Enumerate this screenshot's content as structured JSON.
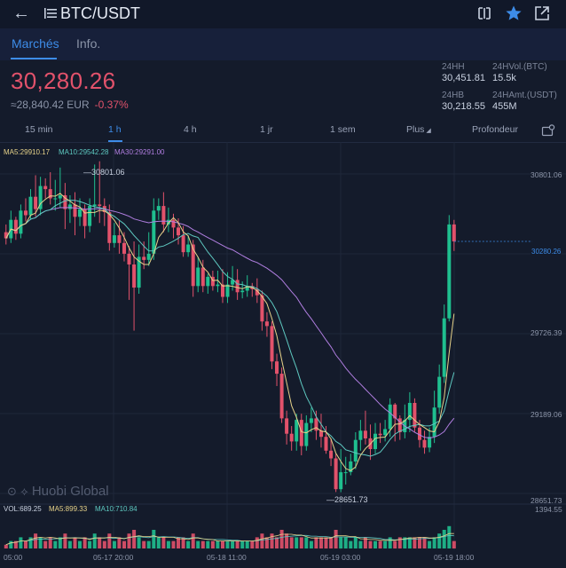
{
  "header": {
    "title": "BTC/USDT"
  },
  "tabs": [
    {
      "label": "Marchés"
    },
    {
      "label": "Info."
    }
  ],
  "ticker": {
    "price": "30,280.26",
    "eur_price": "≈28,840.42 EUR",
    "change": "-0.37%",
    "stats": [
      {
        "label": "24HH",
        "value": "30,451.81"
      },
      {
        "label": "24HVol.(BTC)",
        "value": "15.5k"
      },
      {
        "label": "24HB",
        "value": "30,218.55"
      },
      {
        "label": "24HAmt.(USDT)",
        "value": "455M"
      }
    ]
  },
  "intervals": [
    "15 min",
    "1 h",
    "4 h",
    "1 jr",
    "1 sem",
    "Plus",
    "Profondeur"
  ],
  "active_interval": "1 h",
  "ma_legend": {
    "ma5": "MA5:29910.17",
    "ma10": "MA10:29542.28",
    "ma30": "MA30:29291.00"
  },
  "volume_legend": {
    "vol": "VOL:689.25",
    "ma5": "MA5:899.33",
    "ma10": "MA10:710.84"
  },
  "watermark": "Huobi Global",
  "colors": {
    "up": "#1fbf8f",
    "down": "#e2526b",
    "accent": "#3d8ce8",
    "ma5": "#e7d38a",
    "ma10": "#5ec8c0",
    "ma30": "#b07ee0",
    "bg": "#141b2b"
  },
  "chart_data": {
    "type": "candlestick",
    "price_axis_labels": [
      "30801.06",
      "30280.26",
      "29726.39",
      "29189.06",
      "28651.73"
    ],
    "volume_axis_label": "1394.55",
    "time_labels": [
      "05:00",
      "05-17 20:00",
      "05-18 11:00",
      "05-19 03:00",
      "05-19 18:00"
    ],
    "high_marker": "30801.06",
    "low_marker": "28651.73",
    "last_price": "30280.26",
    "price_range": [
      28590,
      30880
    ],
    "candles": [
      [
        30340,
        30300,
        30390,
        30260,
        1
      ],
      [
        30300,
        30420,
        30480,
        30270,
        2
      ],
      [
        30420,
        30330,
        30440,
        30290,
        2
      ],
      [
        30330,
        30480,
        30520,
        30300,
        3
      ],
      [
        30480,
        30450,
        30560,
        30410,
        2
      ],
      [
        30450,
        30570,
        30620,
        30420,
        3
      ],
      [
        30570,
        30490,
        30710,
        30440,
        4
      ],
      [
        30490,
        30640,
        30700,
        30450,
        3
      ],
      [
        30640,
        30620,
        30690,
        30560,
        2
      ],
      [
        30620,
        30560,
        30730,
        30520,
        3
      ],
      [
        30560,
        30560,
        30680,
        30480,
        2
      ],
      [
        30560,
        30580,
        30760,
        30500,
        3
      ],
      [
        30580,
        30490,
        30660,
        30360,
        4
      ],
      [
        30490,
        30520,
        30580,
        30400,
        2
      ],
      [
        30520,
        30440,
        30600,
        30320,
        3
      ],
      [
        30440,
        30490,
        30560,
        30380,
        2
      ],
      [
        30490,
        30380,
        30520,
        30300,
        3
      ],
      [
        30380,
        30510,
        30560,
        30340,
        2
      ],
      [
        30510,
        30520,
        30780,
        30440,
        4
      ],
      [
        30520,
        30510,
        30801,
        30400,
        3
      ],
      [
        30510,
        30470,
        30560,
        30380,
        2
      ],
      [
        30470,
        30270,
        30520,
        30220,
        4
      ],
      [
        30270,
        30320,
        30400,
        30240,
        2
      ],
      [
        30320,
        30270,
        30420,
        30200,
        3
      ],
      [
        30270,
        30200,
        30340,
        30150,
        2
      ],
      [
        30200,
        30130,
        30250,
        29900,
        4
      ],
      [
        30130,
        29980,
        30280,
        29700,
        5
      ],
      [
        29980,
        30180,
        30260,
        29940,
        3
      ],
      [
        30180,
        30160,
        30280,
        30100,
        2
      ],
      [
        30160,
        30200,
        30340,
        30120,
        2
      ],
      [
        30200,
        30480,
        30560,
        30160,
        5
      ],
      [
        30480,
        30510,
        30560,
        30420,
        3
      ],
      [
        30510,
        30390,
        30600,
        30340,
        3
      ],
      [
        30390,
        30420,
        30500,
        30340,
        2
      ],
      [
        30420,
        30370,
        30460,
        30300,
        2
      ],
      [
        30370,
        30320,
        30430,
        30260,
        3
      ],
      [
        30320,
        30210,
        30380,
        30180,
        3
      ],
      [
        30210,
        30260,
        30320,
        30180,
        2
      ],
      [
        30260,
        29990,
        30290,
        29920,
        4
      ],
      [
        29990,
        30110,
        30180,
        29950,
        2
      ],
      [
        30110,
        29990,
        30160,
        29950,
        2
      ],
      [
        29990,
        30050,
        30070,
        29940,
        2
      ],
      [
        30050,
        29990,
        30090,
        29960,
        2
      ],
      [
        29990,
        30000,
        30090,
        29950,
        2
      ],
      [
        30000,
        29920,
        30100,
        29880,
        2
      ],
      [
        29920,
        30000,
        30080,
        29880,
        2
      ],
      [
        30000,
        30030,
        30120,
        29960,
        2
      ],
      [
        30030,
        29950,
        30100,
        29900,
        2
      ],
      [
        29950,
        29960,
        30020,
        29910,
        2
      ],
      [
        29960,
        29990,
        30060,
        29920,
        2
      ],
      [
        29990,
        29970,
        30010,
        29920,
        2
      ],
      [
        29970,
        29930,
        30040,
        29880,
        3
      ],
      [
        29930,
        29760,
        29960,
        29700,
        4
      ],
      [
        29760,
        29730,
        29820,
        29660,
        3
      ],
      [
        29730,
        29500,
        29760,
        29450,
        4
      ],
      [
        29500,
        29420,
        29550,
        29340,
        3
      ],
      [
        29420,
        29130,
        29460,
        29100,
        5
      ],
      [
        29130,
        29030,
        29180,
        28960,
        4
      ],
      [
        29030,
        28980,
        29080,
        28920,
        3
      ],
      [
        28980,
        29120,
        29160,
        28920,
        3
      ],
      [
        29120,
        28950,
        29160,
        28890,
        3
      ],
      [
        28950,
        29100,
        29150,
        28920,
        3
      ],
      [
        29100,
        29130,
        29200,
        29040,
        2
      ],
      [
        29130,
        29050,
        29180,
        28990,
        3
      ],
      [
        29050,
        29010,
        29160,
        28940,
        3
      ],
      [
        29010,
        28920,
        29080,
        28900,
        3
      ],
      [
        28920,
        28870,
        29000,
        28820,
        3
      ],
      [
        28870,
        28670,
        28900,
        28651,
        5
      ],
      [
        28670,
        28780,
        28930,
        28650,
        3
      ],
      [
        28780,
        28780,
        28880,
        28700,
        3
      ],
      [
        28780,
        28850,
        28900,
        28760,
        2
      ],
      [
        28850,
        28990,
        29040,
        28800,
        3
      ],
      [
        28990,
        29050,
        29120,
        28920,
        2
      ],
      [
        29050,
        29000,
        29180,
        28960,
        3
      ],
      [
        29000,
        28930,
        29090,
        28860,
        2
      ],
      [
        28930,
        29030,
        29100,
        28900,
        2
      ],
      [
        29030,
        29020,
        29100,
        28970,
        2
      ],
      [
        29020,
        29060,
        29120,
        28980,
        2
      ],
      [
        29060,
        29220,
        29260,
        29010,
        3
      ],
      [
        29220,
        29130,
        29230,
        28980,
        2
      ],
      [
        29130,
        29040,
        29150,
        28990,
        3
      ],
      [
        29040,
        29120,
        29220,
        29000,
        3
      ],
      [
        29120,
        29230,
        29300,
        29040,
        3
      ],
      [
        29230,
        29070,
        29260,
        29040,
        3
      ],
      [
        29070,
        28990,
        29120,
        28940,
        3
      ],
      [
        28990,
        28940,
        29050,
        28900,
        3
      ],
      [
        28940,
        29010,
        29070,
        28910,
        2
      ],
      [
        29010,
        29200,
        29310,
        28970,
        3
      ],
      [
        29200,
        29400,
        29480,
        29160,
        4
      ],
      [
        29400,
        29780,
        29870,
        29360,
        5
      ],
      [
        29780,
        30390,
        30451,
        29760,
        6
      ],
      [
        30390,
        30280,
        30420,
        30218,
        2
      ]
    ]
  }
}
